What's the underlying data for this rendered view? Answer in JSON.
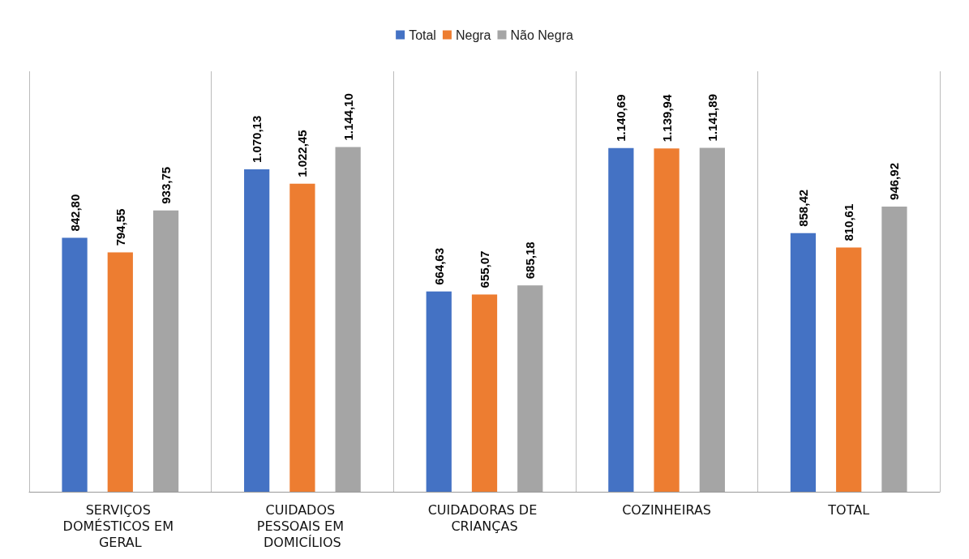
{
  "chart_data": {
    "type": "bar",
    "categories": [
      "SERVIÇOS DOMÉSTICOS EM GERAL",
      "CUIDADOS PESSOAIS EM DOMICÍLIOS",
      "CUIDADORAS DE CRIANÇAS",
      "COZINHEIRAS",
      "TOTAL"
    ],
    "series": [
      {
        "name": "Total",
        "color": "#4472c4",
        "values": [
          842.8,
          1070.13,
          664.63,
          1140.69,
          858.42
        ],
        "value_labels": [
          "842,80",
          "1.070,13",
          "664,63",
          "1.140,69",
          "858,42"
        ]
      },
      {
        "name": "Negra",
        "color": "#ed7d31",
        "values": [
          794.55,
          1022.45,
          655.07,
          1139.94,
          810.61
        ],
        "value_labels": [
          "794,55",
          "1.022,45",
          "655,07",
          "1.139,94",
          "810,61"
        ]
      },
      {
        "name": "Não Negra",
        "color": "#a5a5a5",
        "values": [
          933.75,
          1144.1,
          685.18,
          1141.89,
          946.92
        ],
        "value_labels": [
          "933,75",
          "1.144,10",
          "685,18",
          "1.141,89",
          "946,92"
        ]
      }
    ],
    "grid": "x",
    "legend": "top"
  }
}
